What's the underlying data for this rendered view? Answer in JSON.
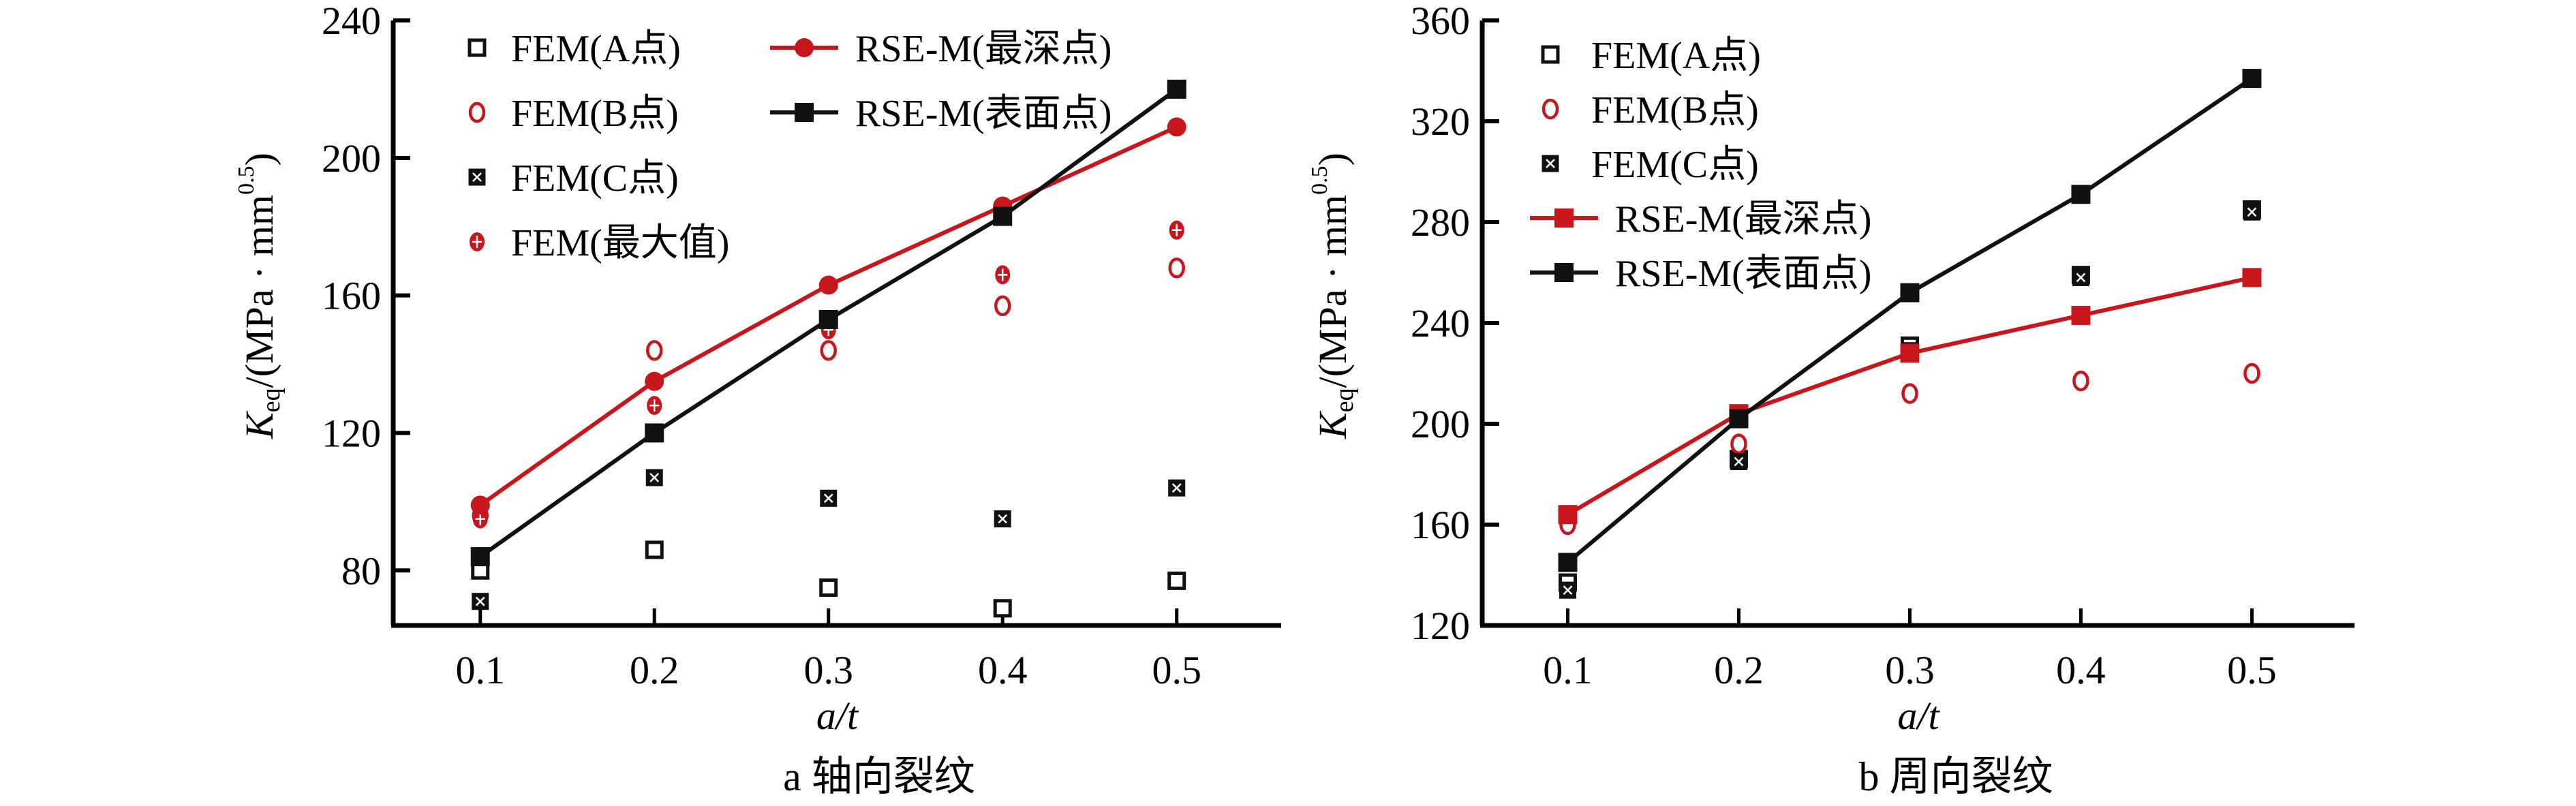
{
  "colors": {
    "red": "#c8161d",
    "black": "#111111"
  },
  "chart_data": [
    {
      "type": "line",
      "caption": "a  轴向裂纹",
      "xlabel": "a/t",
      "ylabel": "K_eq/(MPa · mm^0.5)",
      "ylabel_main": "K",
      "ylabel_sub": "eq",
      "ylabel_rest": "/(MPa · mm",
      "ylabel_sup": "0.5",
      "ylabel_close": ")",
      "x": [
        0.1,
        0.2,
        0.3,
        0.4,
        0.5
      ],
      "x_tick_labels": [
        "0.1",
        "0.2",
        "0.3",
        "0.4",
        "0.5"
      ],
      "xlim": [
        0.05,
        0.56
      ],
      "ylim": [
        64,
        240
      ],
      "y_ticks": [
        80,
        120,
        160,
        200,
        240
      ],
      "y_tick_labels": [
        "80",
        "120",
        "160",
        "200",
        "240"
      ],
      "grid": false,
      "legend_placement": "top-left, two columns",
      "series": [
        {
          "name": "FEM(A点)",
          "marker": "open-square",
          "color": "black",
          "line": false,
          "values": [
            80,
            86,
            75,
            69,
            77
          ]
        },
        {
          "name": "FEM(B点)",
          "marker": "open-circle",
          "color": "red",
          "line": false,
          "values": [
            96,
            144,
            144,
            157,
            168
          ]
        },
        {
          "name": "FEM(C点)",
          "marker": "crossed-square",
          "color": "black",
          "line": false,
          "values": [
            71,
            107,
            101,
            95,
            104
          ]
        },
        {
          "name": "FEM(最大值)",
          "marker": "crossed-circle",
          "color": "red",
          "line": false,
          "values": [
            95,
            128,
            150,
            166,
            179
          ]
        },
        {
          "name": "RSE-M(最深点)",
          "marker": "filled-circle",
          "color": "red",
          "line": true,
          "values": [
            99,
            135,
            163,
            186,
            209
          ]
        },
        {
          "name": "RSE-M(表面点)",
          "marker": "filled-square",
          "color": "black",
          "line": true,
          "values": [
            84,
            120,
            153,
            183,
            220
          ]
        }
      ]
    },
    {
      "type": "line",
      "caption": "b  周向裂纹",
      "xlabel": "a/t",
      "ylabel": "K_eq/(MPa · mm^0.5)",
      "ylabel_main": "K",
      "ylabel_sub": "eq",
      "ylabel_rest": "/(MPa · mm",
      "ylabel_sup": "0.5",
      "ylabel_close": ")",
      "x": [
        0.1,
        0.2,
        0.3,
        0.4,
        0.5
      ],
      "x_tick_labels": [
        "0.1",
        "0.2",
        "0.3",
        "0.4",
        "0.5"
      ],
      "xlim": [
        0.05,
        0.56
      ],
      "ylim": [
        120,
        360
      ],
      "y_ticks": [
        120,
        160,
        200,
        240,
        280,
        320,
        360
      ],
      "y_tick_labels": [
        "120",
        "160",
        "200",
        "240",
        "280",
        "320",
        "360"
      ],
      "grid": false,
      "legend_placement": "top-left",
      "series": [
        {
          "name": "FEM(A点)",
          "marker": "open-square",
          "color": "black",
          "line": false,
          "values": [
            137,
            186,
            231,
            259,
            285
          ]
        },
        {
          "name": "FEM(B点)",
          "marker": "open-circle",
          "color": "red",
          "line": false,
          "values": [
            160,
            192,
            212,
            217,
            220
          ]
        },
        {
          "name": "FEM(C点)",
          "marker": "crossed-square",
          "color": "black",
          "line": false,
          "values": [
            134,
            185,
            229,
            258,
            284
          ]
        },
        {
          "name": "RSE-M(最深点)",
          "marker": "filled-square",
          "color": "red",
          "line": true,
          "values": [
            164,
            204,
            228,
            243,
            258
          ]
        },
        {
          "name": "RSE-M(表面点)",
          "marker": "filled-square",
          "color": "black",
          "line": true,
          "values": [
            145,
            202,
            252,
            291,
            337
          ]
        }
      ]
    }
  ]
}
